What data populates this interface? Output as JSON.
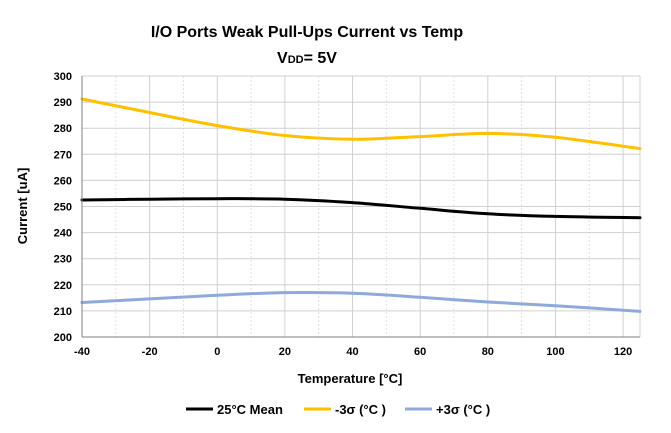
{
  "chart_data": {
    "type": "line",
    "title": "I/O Ports Weak Pull-Ups  Current vs Temp",
    "subtitle": "VDD= 5V",
    "subtitle_parts": {
      "main": "V",
      "sub": "DD",
      "rest": "= 5V"
    },
    "xlabel": "Temperature [°C]",
    "ylabel": "Current [uA]",
    "xlim": [
      -40,
      125
    ],
    "ylim": [
      200,
      300
    ],
    "x_ticks": [
      -40,
      -20,
      0,
      20,
      40,
      60,
      80,
      100,
      120
    ],
    "y_ticks": [
      200,
      210,
      220,
      230,
      240,
      250,
      260,
      270,
      280,
      290,
      300
    ],
    "grid": {
      "x": true,
      "y": true,
      "x_minor": true
    },
    "legend_position": "bottom",
    "series": [
      {
        "name": "25°C Mean",
        "color": "#000000",
        "x": [
          -40,
          -20,
          0,
          20,
          40,
          60,
          80,
          100,
          125
        ],
        "y": [
          252.5,
          252.8,
          253.0,
          252.8,
          251.5,
          249.3,
          247.2,
          246.2,
          245.7
        ]
      },
      {
        "name": "-3σ (°C )",
        "color": "#FFC000",
        "x": [
          -40,
          -20,
          0,
          20,
          40,
          60,
          80,
          100,
          125
        ],
        "y": [
          291.2,
          286.0,
          281.0,
          277.2,
          275.8,
          276.8,
          278.0,
          276.5,
          272.2
        ]
      },
      {
        "name": "+3σ (°C )",
        "color": "#8EA9DB",
        "x": [
          -40,
          -20,
          0,
          20,
          40,
          60,
          80,
          100,
          125
        ],
        "y": [
          213.2,
          214.6,
          216.0,
          217.0,
          216.8,
          215.2,
          213.4,
          212.0,
          209.8
        ]
      }
    ]
  }
}
